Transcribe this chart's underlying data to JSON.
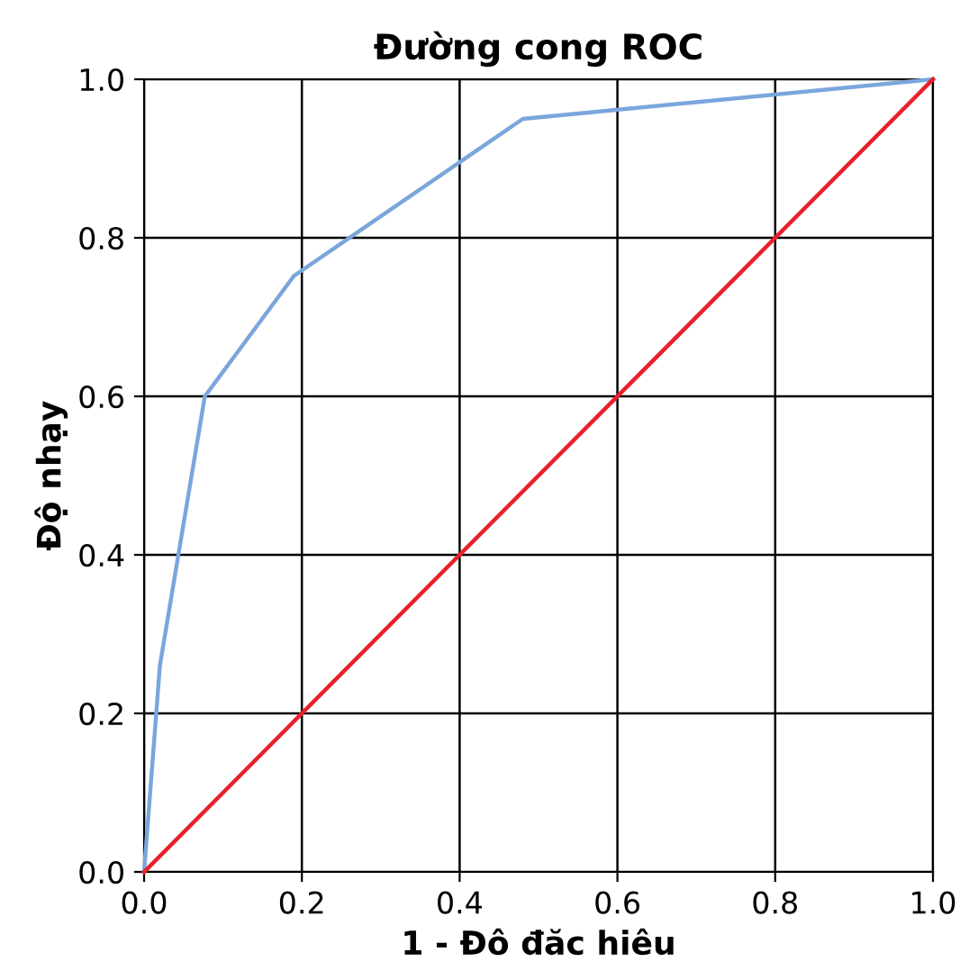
{
  "chart_data": {
    "type": "line",
    "title": "Đường cong ROC",
    "xlabel": "1 - Đô đăc hiêu",
    "ylabel": "Độ nhạy",
    "series": [
      {
        "color": "#7aa6dc",
        "x": [
          0,
          0.02,
          0.077,
          0.19,
          0.48,
          1.0
        ],
        "values": [
          0,
          0.26,
          0.6,
          0.752,
          0.95,
          1.0
        ]
      },
      {
        "color": "#e8202a",
        "x": [
          0,
          1.0
        ],
        "values": [
          0,
          1.0
        ]
      }
    ],
    "xlim": [
      0,
      1.0
    ],
    "ylim": [
      0,
      1.0
    ],
    "xticks": [
      {
        "value": 0,
        "label": "0.0"
      },
      0.2,
      0.4,
      0.6,
      0.8,
      {
        "value": 1.0,
        "label": "1.0"
      }
    ],
    "yticks": [
      {
        "value": 0,
        "label": "0.0"
      },
      0.2,
      0.4,
      0.6,
      0.8,
      {
        "value": 1.0,
        "label": "1.0"
      }
    ],
    "grid": true,
    "line_style": "solid",
    "marker": "none"
  }
}
